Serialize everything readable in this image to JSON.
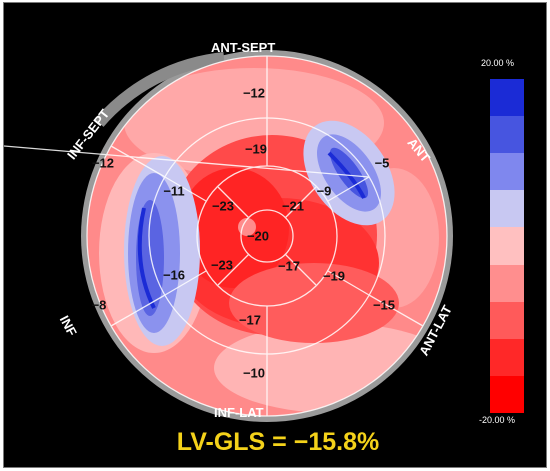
{
  "walls": {
    "ant_sept": "ANT-SEPT",
    "ant": "ANT",
    "ant_lat": "ANT-LAT",
    "inf_lat": "INF-LAT",
    "inf": "INF",
    "inf_sept": "INF-SEPT"
  },
  "segments": {
    "basal": [
      "−12",
      "−5",
      "−15",
      "−10",
      "−8",
      "−12"
    ],
    "mid": [
      "−19",
      "−9",
      "−19",
      "−17",
      "−16",
      "−11"
    ],
    "apical": [
      "−21",
      "−17",
      "−23",
      "−23"
    ],
    "apex": "−20"
  },
  "colorbar": {
    "max_label": "20.00 %",
    "min_label": "-20.00 %",
    "bands": [
      "#1b2bd6",
      "#4755e0",
      "#7f87ee",
      "#c8c8f2",
      "#ffc0c0",
      "#ff8e8e",
      "#ff5a5a",
      "#ff2828",
      "#ff0000"
    ]
  },
  "global": {
    "label": "LV-GLS = −15.8%"
  }
}
